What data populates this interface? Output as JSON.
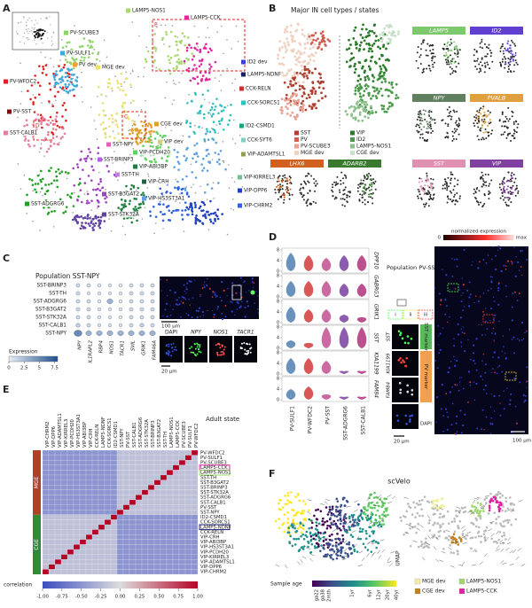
{
  "panel_a": {
    "letter": "A",
    "clusters": [
      {
        "name": "LAMP5-NOS1",
        "color": "#a8d86e"
      },
      {
        "name": "LAMP5-CCK",
        "color": "#e0259e"
      },
      {
        "name": "PV-SCUBE3",
        "color": "#8fd46a"
      },
      {
        "name": "PV-SULF1",
        "color": "#3fa9dc"
      },
      {
        "name": "PV dev",
        "color": "#f0a030"
      },
      {
        "name": "MGE dev",
        "color": "#e8e070"
      },
      {
        "name": "ID2 dev",
        "color": "#4040d0"
      },
      {
        "name": "LAMP5-NDNF",
        "color": "#20206a"
      },
      {
        "name": "CCK-RELN",
        "color": "#c0392b"
      },
      {
        "name": "CCK-SORCS1",
        "color": "#30c0c0"
      },
      {
        "name": "PV-WFDC2",
        "color": "#e02020"
      },
      {
        "name": "PV-SST",
        "color": "#7a1010"
      },
      {
        "name": "SST-CALB1",
        "color": "#e080a0"
      },
      {
        "name": "CGE dev",
        "color": "#e0a030"
      },
      {
        "name": "VIP dev",
        "color": "#d0d080"
      },
      {
        "name": "ID2-CSMD1",
        "color": "#20a080"
      },
      {
        "name": "CCK-SYT6",
        "color": "#80d0c0"
      },
      {
        "name": "VIP-ADAMTSL1",
        "color": "#90a050"
      },
      {
        "name": "SST-NPY",
        "color": "#e060c0"
      },
      {
        "name": "VIP-PCDH20",
        "color": "#60d060"
      },
      {
        "name": "SST-BRINP3",
        "color": "#b060e0"
      },
      {
        "name": "VIP-ABI3BP",
        "color": "#208040"
      },
      {
        "name": "SST-TH",
        "color": "#c080e0"
      },
      {
        "name": "VIP-CRH",
        "color": "#206040"
      },
      {
        "name": "VIP-KIRREL3",
        "color": "#70c090"
      },
      {
        "name": "SST-B3GAT2",
        "color": "#a040c0"
      },
      {
        "name": "VIP-HS3ST3A1",
        "color": "#60a0e0"
      },
      {
        "name": "VIP-DPP6",
        "color": "#2040c0"
      },
      {
        "name": "SST-ADGRG6",
        "color": "#20a020"
      },
      {
        "name": "SST-STK32A",
        "color": "#6040a0"
      },
      {
        "name": "VIP-CHRM2",
        "color": "#3060e0"
      }
    ],
    "boxes": [
      "C",
      "D",
      "E"
    ]
  },
  "panel_b": {
    "letter": "B",
    "title": "Major IN cell types / states",
    "legend": [
      {
        "name": "SST",
        "color": "#b04030"
      },
      {
        "name": "PV",
        "color": "#d06050"
      },
      {
        "name": "PV-SCUBE3",
        "color": "#e8a090"
      },
      {
        "name": "MGE dev",
        "color": "#f0d0c0"
      },
      {
        "name": "VIP",
        "color": "#2a7a2a"
      },
      {
        "name": "ID2",
        "color": "#4a9a4a"
      },
      {
        "name": "LAMP5-NOS1",
        "color": "#8ac08a"
      },
      {
        "name": "CGE dev",
        "color": "#c8e0c8"
      }
    ],
    "genes": [
      {
        "name": "LAMP5",
        "color": "#7cc86c"
      },
      {
        "name": "ID2",
        "color": "#6040d0"
      },
      {
        "name": "NPY",
        "color": "#608060"
      },
      {
        "name": "PVALB",
        "color": "#e0a040"
      },
      {
        "name": "LHX6",
        "color": "#d06020"
      },
      {
        "name": "ADARB2",
        "color": "#3a7a30"
      },
      {
        "name": "SST",
        "color": "#e090b0"
      },
      {
        "name": "VIP",
        "color": "#8040a0"
      }
    ]
  },
  "panel_c": {
    "letter": "C",
    "title": "Population SST-NPY",
    "rows": [
      "SST-BRINP3",
      "SST-TH",
      "SST-ADGRG6",
      "SST-B3GAT2",
      "SST-STK32A",
      "SST-CALB1",
      "SST-NPY"
    ],
    "genes": [
      "NPY",
      "IL1RAPL2",
      "RBP4",
      "NOS1",
      "TACR1",
      "SVIL",
      "GRIK1",
      "FAM46A"
    ],
    "expression": [
      [
        1,
        1,
        0.5,
        0.5,
        0.5,
        1,
        1,
        1
      ],
      [
        1,
        0.5,
        0.5,
        0.5,
        0.5,
        1,
        1,
        1
      ],
      [
        1,
        1,
        0.5,
        3,
        0.5,
        1,
        1,
        1
      ],
      [
        1,
        1,
        0.5,
        0.5,
        0.5,
        1,
        1,
        1
      ],
      [
        1,
        1,
        0.5,
        0.5,
        0.5,
        1,
        1,
        1
      ],
      [
        1.5,
        1,
        0.5,
        0.5,
        0.5,
        1,
        1.5,
        1
      ],
      [
        5,
        3,
        3,
        3,
        3,
        3,
        3,
        3
      ]
    ],
    "colorbar_label": "Expression",
    "clim": [
      0,
      8
    ],
    "cticks": [
      0,
      2.5,
      5,
      7.5
    ],
    "scale_large": "100 µm",
    "stains": [
      "DAPI",
      "NPY",
      "NOS1",
      "TACR1"
    ],
    "scale_small": "20 µm"
  },
  "panel_d": {
    "letter": "D",
    "cell_types": [
      "PV-SULF1",
      "PV-WFDC2",
      "PV-SST",
      "SST-ADGRG6",
      "SST-CALB1"
    ],
    "colors": [
      "#4f7fb0",
      "#d23a3a",
      "#c2508f",
      "#7a3fa0",
      "#b0307a"
    ],
    "genes": [
      "DPP10",
      "GABRG3",
      "GRIK1",
      "SST",
      "KIA1199",
      "FAM84"
    ],
    "expression": [
      [
        7,
        6,
        5,
        6,
        6
      ],
      [
        6,
        6,
        6,
        5,
        5
      ],
      [
        6,
        5,
        5,
        3,
        2
      ],
      [
        3,
        2,
        8,
        8,
        8
      ],
      [
        6,
        6,
        5,
        1,
        1
      ],
      [
        4,
        5,
        2,
        1,
        1
      ]
    ],
    "ylim": [
      0,
      8
    ],
    "yticks": [
      0,
      4,
      8
    ],
    "title": "Population PV-SST",
    "colorbar_label": "normalized expression",
    "colorbar_ticks": [
      "0",
      "max"
    ],
    "insets": [
      "i",
      "ii",
      "iii"
    ],
    "inset_genes": [
      "SST",
      "KIA1199",
      "FAM84",
      "DAPI"
    ],
    "markers": [
      "SST marker",
      "PV marker"
    ],
    "scale_small": "20 µm",
    "scale_large": "100 µm"
  },
  "panel_e": {
    "letter": "E",
    "title": "Adult state",
    "rows": [
      "PV-WFDC2",
      "PV-SULF1",
      "PV-SCUBE3",
      "LAMP5-CCK",
      "LAMP5-NOS1",
      "SST-TH",
      "SST-B3GAT2",
      "SST-BRINP3",
      "SST-STK32A",
      "SST-ADGRG6",
      "SST-CALB1",
      "PV-SST",
      "SST-NPY",
      "ID2-CSMD1",
      "CCK-SORCS1",
      "LAMP5-NDNF",
      "CCK-RELN",
      "VIP-CRH",
      "VIP-ABI3BP",
      "VIP-HS3ST3A1",
      "VIP-PCDH20",
      "VIP-KIRREL3",
      "VIP-ADAMTSL1",
      "VIP-DPP6",
      "VIP-CHRM2"
    ],
    "columns": [
      "VIP-CHRM2",
      "VIP-DPP6",
      "VIP-ADAMTSL1",
      "VIP-KIRREL3",
      "VIP-PCDH20",
      "VIP-HS3ST3A1",
      "VIP-ABI3BP",
      "VIP-CRH",
      "CCK-RELN",
      "LAMP5-NDNF",
      "CCK-SORCS1",
      "ID2-CSMD1",
      "SST-NPY",
      "PV-SST",
      "SST-CALB1",
      "SST-ADGRG6",
      "SST-STK32A",
      "SST-BRINP3",
      "SST-B3GAT2",
      "SST-TH",
      "LAMP5-NOS1",
      "LAMP5-CCK",
      "PV-SCUBE3",
      "PV-SULF1",
      "PV-WFDC2"
    ],
    "matrix": [
      [
        -0.5,
        -0.5,
        -0.5,
        -0.5,
        -0.5,
        -0.5,
        -0.5,
        -0.5,
        -0.5,
        -0.5,
        -0.5,
        -0.5,
        -0.2,
        -0.2,
        -0.2,
        -0.2,
        -0.2,
        -0.2,
        -0.2,
        -0.2,
        -0.2,
        -0.2,
        -0.2,
        -0.2,
        1
      ],
      [
        -0.5,
        -0.5,
        -0.5,
        -0.5,
        -0.5,
        -0.5,
        -0.5,
        -0.5,
        -0.5,
        -0.5,
        -0.5,
        -0.5,
        -0.2,
        -0.2,
        -0.2,
        -0.2,
        -0.2,
        -0.2,
        -0.2,
        -0.2,
        -0.2,
        -0.2,
        -0.2,
        1,
        -0.2
      ],
      [
        -0.5,
        -0.5,
        -0.5,
        -0.5,
        -0.5,
        -0.5,
        -0.5,
        -0.5,
        -0.5,
        -0.5,
        -0.5,
        -0.5,
        -0.2,
        -0.2,
        -0.2,
        -0.2,
        -0.2,
        -0.2,
        -0.2,
        -0.2,
        -0.2,
        -0.2,
        1,
        -0.2,
        -0.2
      ],
      [
        -0.5,
        -0.5,
        -0.5,
        -0.5,
        -0.5,
        -0.5,
        -0.5,
        -0.5,
        -0.5,
        -0.5,
        -0.5,
        -0.5,
        -0.2,
        -0.2,
        -0.2,
        -0.2,
        -0.2,
        -0.2,
        -0.2,
        -0.2,
        -0.2,
        1,
        -0.2,
        -0.2,
        -0.2
      ],
      [
        -0.5,
        -0.5,
        -0.5,
        -0.5,
        -0.5,
        -0.5,
        -0.5,
        -0.5,
        -0.5,
        -0.5,
        -0.5,
        -0.5,
        -0.2,
        -0.2,
        -0.2,
        -0.2,
        -0.2,
        -0.2,
        -0.2,
        -0.2,
        1,
        -0.2,
        -0.2,
        -0.2,
        -0.2
      ],
      [
        -0.5,
        -0.5,
        -0.5,
        -0.5,
        -0.5,
        -0.5,
        -0.5,
        -0.5,
        -0.5,
        -0.5,
        -0.5,
        -0.5,
        -0.2,
        -0.2,
        -0.2,
        -0.2,
        -0.2,
        -0.2,
        -0.2,
        1,
        -0.2,
        -0.2,
        -0.2,
        -0.2,
        -0.2
      ],
      [
        -0.5,
        -0.5,
        -0.5,
        -0.5,
        -0.5,
        -0.5,
        -0.5,
        -0.5,
        -0.5,
        -0.5,
        -0.5,
        -0.5,
        -0.2,
        -0.2,
        -0.2,
        -0.2,
        -0.2,
        -0.2,
        1,
        -0.2,
        -0.2,
        -0.2,
        -0.2,
        -0.2,
        -0.2
      ],
      [
        -0.5,
        -0.5,
        -0.5,
        -0.5,
        -0.5,
        -0.5,
        -0.5,
        -0.5,
        -0.5,
        -0.5,
        -0.5,
        -0.5,
        -0.2,
        -0.2,
        -0.2,
        -0.2,
        -0.2,
        1,
        -0.2,
        -0.2,
        -0.2,
        -0.2,
        -0.2,
        -0.2,
        -0.2
      ],
      [
        -0.5,
        -0.5,
        -0.5,
        -0.5,
        -0.5,
        -0.5,
        -0.5,
        -0.5,
        -0.5,
        -0.5,
        -0.5,
        -0.5,
        -0.2,
        -0.2,
        -0.2,
        -0.2,
        1,
        -0.2,
        -0.2,
        -0.2,
        -0.2,
        -0.2,
        -0.2,
        -0.2,
        -0.2
      ],
      [
        -0.5,
        -0.5,
        -0.5,
        -0.5,
        -0.5,
        -0.5,
        -0.5,
        -0.5,
        -0.5,
        -0.5,
        -0.5,
        -0.5,
        -0.2,
        -0.2,
        -0.2,
        1,
        -0.2,
        -0.2,
        -0.2,
        -0.2,
        -0.2,
        -0.2,
        -0.2,
        -0.2,
        -0.2
      ],
      [
        -0.5,
        -0.5,
        -0.5,
        -0.5,
        -0.5,
        -0.5,
        -0.5,
        -0.5,
        -0.5,
        -0.5,
        -0.5,
        -0.5,
        -0.2,
        -0.2,
        1,
        -0.2,
        -0.2,
        -0.2,
        -0.2,
        -0.2,
        -0.2,
        -0.2,
        -0.2,
        -0.2,
        -0.2
      ],
      [
        -0.5,
        -0.5,
        -0.5,
        -0.5,
        -0.5,
        -0.5,
        -0.5,
        -0.5,
        -0.5,
        -0.5,
        -0.5,
        -0.5,
        -0.2,
        1,
        -0.2,
        -0.2,
        -0.2,
        -0.2,
        -0.2,
        -0.2,
        -0.2,
        -0.2,
        -0.2,
        -0.2,
        -0.2
      ],
      [
        -0.5,
        -0.5,
        -0.5,
        -0.5,
        -0.5,
        -0.5,
        -0.5,
        -0.5,
        -0.5,
        -0.5,
        -0.5,
        -0.5,
        1,
        -0.2,
        -0.2,
        -0.2,
        -0.2,
        -0.2,
        -0.2,
        -0.2,
        -0.2,
        -0.2,
        -0.2,
        -0.2,
        -0.2
      ],
      [
        -0.2,
        -0.2,
        -0.2,
        -0.2,
        -0.2,
        -0.2,
        -0.2,
        -0.2,
        -0.2,
        -0.2,
        -0.2,
        1,
        -0.5,
        -0.5,
        -0.5,
        -0.5,
        -0.5,
        -0.5,
        -0.5,
        -0.5,
        -0.5,
        -0.5,
        -0.5,
        -0.5,
        -0.5
      ],
      [
        -0.2,
        -0.2,
        -0.2,
        -0.2,
        -0.2,
        -0.2,
        -0.2,
        -0.2,
        -0.2,
        -0.2,
        1,
        -0.2,
        -0.5,
        -0.5,
        -0.5,
        -0.5,
        -0.5,
        -0.5,
        -0.5,
        -0.5,
        -0.5,
        -0.5,
        -0.5,
        -0.5,
        -0.5
      ],
      [
        -0.2,
        -0.2,
        -0.2,
        -0.2,
        -0.2,
        -0.2,
        -0.2,
        -0.2,
        -0.2,
        1,
        -0.2,
        -0.2,
        -0.5,
        -0.5,
        -0.5,
        -0.5,
        -0.5,
        -0.5,
        -0.5,
        -0.5,
        -0.5,
        -0.5,
        -0.5,
        -0.5,
        -0.5
      ],
      [
        -0.2,
        -0.2,
        -0.2,
        -0.2,
        -0.2,
        -0.2,
        -0.2,
        -0.2,
        1,
        -0.2,
        -0.2,
        -0.2,
        -0.5,
        -0.5,
        -0.5,
        -0.5,
        -0.5,
        -0.5,
        -0.5,
        -0.5,
        -0.5,
        -0.5,
        -0.5,
        -0.5,
        -0.5
      ],
      [
        -0.2,
        -0.2,
        -0.2,
        -0.2,
        -0.2,
        -0.2,
        -0.2,
        1,
        -0.2,
        -0.2,
        -0.2,
        -0.2,
        -0.5,
        -0.5,
        -0.5,
        -0.5,
        -0.5,
        -0.5,
        -0.5,
        -0.5,
        -0.5,
        -0.5,
        -0.5,
        -0.5,
        -0.5
      ],
      [
        -0.2,
        -0.2,
        -0.2,
        -0.2,
        -0.2,
        -0.2,
        1,
        -0.2,
        -0.2,
        -0.2,
        -0.2,
        -0.2,
        -0.5,
        -0.5,
        -0.5,
        -0.5,
        -0.5,
        -0.5,
        -0.5,
        -0.5,
        -0.5,
        -0.5,
        -0.5,
        -0.5,
        -0.5
      ],
      [
        -0.2,
        -0.2,
        -0.2,
        -0.2,
        -0.2,
        1,
        -0.2,
        -0.2,
        -0.2,
        -0.2,
        -0.2,
        -0.2,
        -0.5,
        -0.5,
        -0.5,
        -0.5,
        -0.5,
        -0.5,
        -0.5,
        -0.5,
        -0.5,
        -0.5,
        -0.5,
        -0.5,
        -0.5
      ],
      [
        -0.2,
        -0.2,
        -0.2,
        -0.2,
        1,
        -0.2,
        -0.2,
        -0.2,
        -0.2,
        -0.2,
        -0.2,
        -0.2,
        -0.5,
        -0.5,
        -0.5,
        -0.5,
        -0.5,
        -0.5,
        -0.5,
        -0.5,
        -0.5,
        -0.5,
        -0.5,
        -0.5,
        -0.5
      ],
      [
        -0.2,
        -0.2,
        -0.2,
        1,
        -0.2,
        -0.2,
        -0.2,
        -0.2,
        -0.2,
        -0.2,
        -0.2,
        -0.2,
        -0.5,
        -0.5,
        -0.5,
        -0.5,
        -0.5,
        -0.5,
        -0.5,
        -0.5,
        -0.5,
        -0.5,
        -0.5,
        -0.5,
        -0.5
      ],
      [
        -0.2,
        -0.2,
        1,
        -0.2,
        -0.2,
        -0.2,
        -0.2,
        -0.2,
        -0.2,
        -0.2,
        -0.2,
        -0.2,
        -0.5,
        -0.5,
        -0.5,
        -0.5,
        -0.5,
        -0.5,
        -0.5,
        -0.5,
        -0.5,
        -0.5,
        -0.5,
        -0.5,
        -0.5
      ],
      [
        -0.2,
        1,
        -0.2,
        -0.2,
        -0.2,
        -0.2,
        -0.2,
        -0.2,
        -0.2,
        -0.2,
        -0.2,
        -0.2,
        -0.5,
        -0.5,
        -0.5,
        -0.5,
        -0.5,
        -0.5,
        -0.5,
        -0.5,
        -0.5,
        -0.5,
        -0.5,
        -0.5,
        -0.5
      ],
      [
        1,
        -0.2,
        -0.2,
        -0.2,
        -0.2,
        -0.2,
        -0.2,
        -0.2,
        -0.2,
        -0.2,
        -0.2,
        -0.2,
        -0.5,
        -0.5,
        -0.5,
        -0.5,
        -0.5,
        -0.5,
        -0.5,
        -0.5,
        -0.5,
        -0.5,
        -0.5,
        -0.5,
        -0.5
      ]
    ],
    "groups": [
      {
        "name": "MGE",
        "color": "#b0402a",
        "first": "PV-WFDC2",
        "last": "SST-NPY"
      },
      {
        "name": "CGE",
        "color": "#2e8b3a",
        "first": "ID2-CSMD1",
        "last": "VIP-CHRM2"
      }
    ],
    "highlights": [
      {
        "row": "LAMP5-CCK",
        "color": "#e020a0"
      },
      {
        "row": "LAMP5-NOS1",
        "color": "#a0d870"
      },
      {
        "row": "LAMP5-NDNF",
        "color": "#202070"
      }
    ],
    "colorbar_label": "correlation",
    "clim": [
      -1,
      1
    ],
    "cticks": [
      {
        "value": -1,
        "label": "-1.00"
      },
      {
        "value": -0.75,
        "label": "-0.75"
      },
      {
        "value": -0.5,
        "label": "-0.50"
      },
      {
        "value": -0.25,
        "label": "-0.25"
      },
      {
        "value": 0,
        "label": "0.00"
      },
      {
        "value": 0.25,
        "label": "0.25"
      },
      {
        "value": 0.5,
        "label": "0.50"
      },
      {
        "value": 0.75,
        "label": "0.75"
      },
      {
        "value": 1,
        "label": "1.00"
      }
    ]
  },
  "panel_f": {
    "letter": "F",
    "title": "scVelo",
    "axis_label": "UMAP",
    "age_label": "Sample age",
    "age_ticks": [
      "ga22",
      "ga38",
      "2mth",
      "1yr",
      "6yr",
      "12yr",
      "20yr",
      "40yr"
    ],
    "legend": [
      {
        "name": "MGE dev",
        "color": "#f0f0a0"
      },
      {
        "name": "CGE dev",
        "color": "#c08020"
      },
      {
        "name": "LAMP5-NOS1",
        "color": "#a0d870"
      },
      {
        "name": "LAMP5-CCK",
        "color": "#e020a0"
      }
    ]
  }
}
